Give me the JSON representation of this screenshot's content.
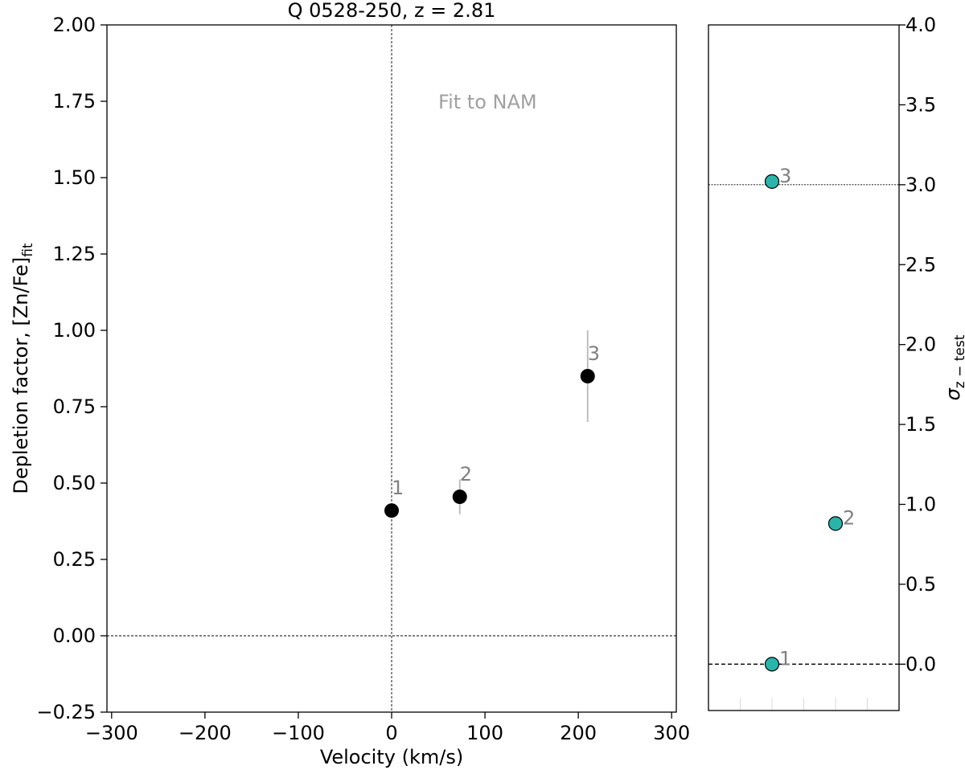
{
  "chart_data": [
    {
      "type": "scatter",
      "title": "Q 0528-250, z = 2.81",
      "xlabel": "Velocity (km/s)",
      "ylabel_main": "Depletion factor, [Zn/Fe]",
      "ylabel_sub": "fit",
      "annotation": "Fit to NAM",
      "xlim": [
        -305,
        305
      ],
      "ylim": [
        -0.25,
        2.0
      ],
      "xticks": [
        -300,
        -200,
        -100,
        0,
        100,
        200,
        300
      ],
      "xtick_labels": [
        "−300",
        "−200",
        "−100",
        "0",
        "100",
        "200",
        "300"
      ],
      "yticks": [
        -0.25,
        0.0,
        0.25,
        0.5,
        0.75,
        1.0,
        1.25,
        1.5,
        1.75,
        2.0
      ],
      "ytick_labels": [
        "−0.25",
        "0.00",
        "0.25",
        "0.50",
        "0.75",
        "1.00",
        "1.25",
        "1.50",
        "1.75",
        "2.00"
      ],
      "reference_lines": {
        "x": 0,
        "y": 0
      },
      "marker_color": "#000000",
      "errorbar_color": "#b8b8b8",
      "points": [
        {
          "label": "1",
          "x": 0,
          "y": 0.41,
          "yerr": 0.0
        },
        {
          "label": "2",
          "x": 73,
          "y": 0.455,
          "yerr": 0.057
        },
        {
          "label": "3",
          "x": 210,
          "y": 0.85,
          "yerr": 0.15
        }
      ]
    },
    {
      "type": "scatter",
      "ylabel_main": "σ",
      "ylabel_sub": "z − test",
      "ylim": [
        -0.29,
        4.0
      ],
      "xlim": [
        0,
        6
      ],
      "yticks": [
        0.0,
        0.5,
        1.0,
        1.5,
        2.0,
        2.5,
        3.0,
        3.5,
        4.0
      ],
      "ytick_labels": [
        "0.0",
        "0.5",
        "1.0",
        "1.5",
        "2.0",
        "2.5",
        "3.0",
        "3.5",
        "4.0"
      ],
      "y_axis_side": "right",
      "minor_x_ticks": [
        1,
        2,
        3,
        4,
        5
      ],
      "reference_lines": {
        "y_dashed": 0.0,
        "y_dotted": 3.0
      },
      "marker_color": "#2bb5aa",
      "points": [
        {
          "label": "1",
          "x": 2,
          "y": 0.0
        },
        {
          "label": "2",
          "x": 4,
          "y": 0.88
        },
        {
          "label": "3",
          "x": 2,
          "y": 3.02
        }
      ]
    }
  ]
}
